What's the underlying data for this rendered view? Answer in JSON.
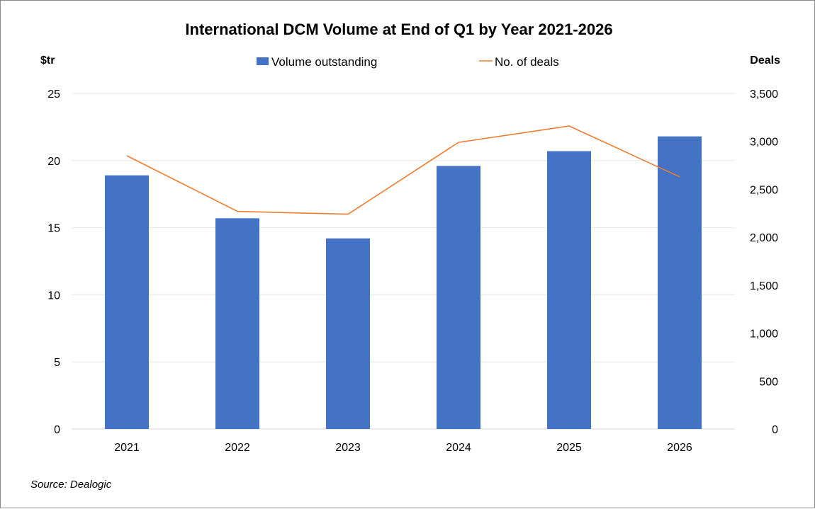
{
  "chart_data": {
    "type": "bar",
    "title": "International DCM Volume at End of Q1 by Year 2021-2026",
    "categories": [
      "2021",
      "2022",
      "2023",
      "2024",
      "2025",
      "2026"
    ],
    "series": [
      {
        "name": "Volume outstanding",
        "type": "bar",
        "axis": "left",
        "color": "#4472c4",
        "values": [
          18.9,
          15.7,
          14.2,
          19.6,
          20.7,
          21.8
        ]
      },
      {
        "name": "No. of deals",
        "type": "line",
        "axis": "right",
        "color": "#ed7d31",
        "values": [
          2850,
          2270,
          2240,
          2990,
          3160,
          2630
        ]
      }
    ],
    "y_left": {
      "label": "$tr",
      "range": [
        0,
        25
      ],
      "ticks": [
        "0",
        "5",
        "10",
        "15",
        "20",
        "25"
      ]
    },
    "y_right": {
      "label": "Deals",
      "range": [
        0,
        3500
      ],
      "ticks": [
        "0",
        "500",
        "1,000",
        "1,500",
        "2,000",
        "2,500",
        "3,000",
        "3,500"
      ]
    },
    "legend": "top-center",
    "grid": true,
    "source": "Source: Dealogic"
  }
}
